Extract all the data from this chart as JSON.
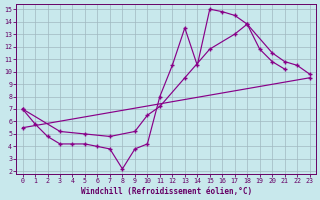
{
  "xlabel": "Windchill (Refroidissement éolien,°C)",
  "bg_color": "#c8e8ec",
  "grid_color": "#a0b8c0",
  "line_color": "#880088",
  "marker": "+",
  "xlim_min": -0.5,
  "xlim_max": 23.5,
  "ylim_min": 1.8,
  "ylim_max": 15.4,
  "xticks": [
    0,
    1,
    2,
    3,
    4,
    5,
    6,
    7,
    8,
    9,
    10,
    11,
    12,
    13,
    14,
    15,
    16,
    17,
    18,
    19,
    20,
    21,
    22,
    23
  ],
  "yticks": [
    2,
    3,
    4,
    5,
    6,
    7,
    8,
    9,
    10,
    11,
    12,
    13,
    14,
    15
  ],
  "line1_x": [
    0,
    1,
    2,
    3,
    4,
    5,
    6,
    7,
    8,
    9,
    10,
    11,
    12,
    13,
    14,
    15,
    16,
    17,
    18,
    19,
    20,
    21
  ],
  "line1_y": [
    7.0,
    5.8,
    4.8,
    4.2,
    4.2,
    4.2,
    4.0,
    3.8,
    2.2,
    3.8,
    4.2,
    8.0,
    10.5,
    13.5,
    10.5,
    15.0,
    14.8,
    14.5,
    13.8,
    11.8,
    10.8,
    10.2
  ],
  "line2_x": [
    0,
    3,
    5,
    7,
    9,
    10,
    11,
    13,
    15,
    17,
    18,
    20,
    21,
    22,
    23
  ],
  "line2_y": [
    7.0,
    5.2,
    5.0,
    4.8,
    5.2,
    6.5,
    7.2,
    9.5,
    11.8,
    13.0,
    13.8,
    11.5,
    10.8,
    10.5,
    9.8
  ],
  "line3_x": [
    0,
    23
  ],
  "line3_y": [
    5.5,
    9.5
  ]
}
